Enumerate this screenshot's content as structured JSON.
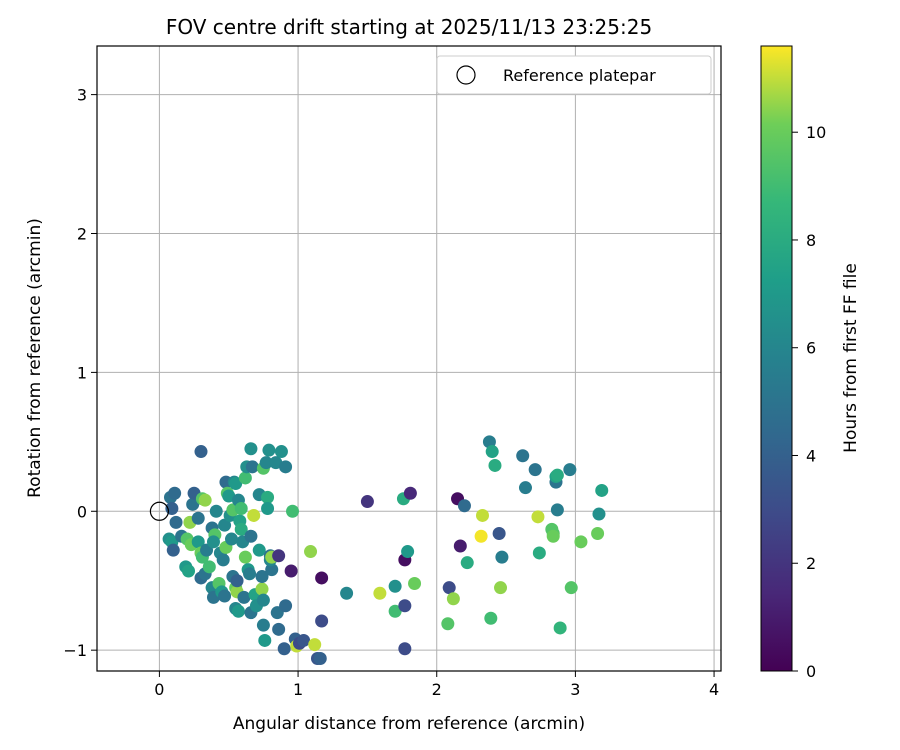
{
  "chart_data": {
    "type": "scatter",
    "title": "FOV centre drift starting at 2025/11/13 23:25:25",
    "xlabel": "Angular distance from reference (arcmin)",
    "ylabel": "Rotation from reference (arcmin)",
    "xlim": [
      -0.45,
      4.05
    ],
    "ylim": [
      -1.15,
      3.35
    ],
    "xticks": [
      "0",
      "1",
      "2",
      "3",
      "4"
    ],
    "yticks": [
      "−1",
      "0",
      "1",
      "2",
      "3"
    ],
    "grid": true,
    "legend": {
      "placement": "top-right",
      "entries": [
        "Reference platepar"
      ]
    },
    "reference": {
      "x": 0,
      "y": 0,
      "label": "Reference platepar"
    },
    "colormap": "viridis",
    "colorbar": {
      "label": "Hours from first FF file",
      "range": [
        0,
        11.6
      ],
      "ticks": [
        "0",
        "2",
        "4",
        "6",
        "8",
        "10"
      ]
    },
    "points": [
      {
        "x": 0.08,
        "y": 0.1,
        "c": 5
      },
      {
        "x": 0.11,
        "y": 0.13,
        "c": 4.5
      },
      {
        "x": 0.09,
        "y": 0.02,
        "c": 4
      },
      {
        "x": 0.12,
        "y": -0.08,
        "c": 4.5
      },
      {
        "x": 0.07,
        "y": -0.2,
        "c": 6.5
      },
      {
        "x": 0.09,
        "y": -0.22,
        "c": 7
      },
      {
        "x": 0.1,
        "y": -0.28,
        "c": 4
      },
      {
        "x": 0.16,
        "y": -0.18,
        "c": 5
      },
      {
        "x": 0.2,
        "y": -0.2,
        "c": 9.5
      },
      {
        "x": 0.19,
        "y": -0.4,
        "c": 7
      },
      {
        "x": 0.21,
        "y": -0.43,
        "c": 7.5
      },
      {
        "x": 0.23,
        "y": -0.24,
        "c": 10
      },
      {
        "x": 0.24,
        "y": 0.05,
        "c": 5
      },
      {
        "x": 0.25,
        "y": 0.13,
        "c": 4
      },
      {
        "x": 0.22,
        "y": -0.08,
        "c": 10.5
      },
      {
        "x": 0.28,
        "y": -0.05,
        "c": 5
      },
      {
        "x": 0.3,
        "y": 0.43,
        "c": 4
      },
      {
        "x": 0.31,
        "y": 0.09,
        "c": 9.5
      },
      {
        "x": 0.33,
        "y": 0.08,
        "c": 10.5
      },
      {
        "x": 0.28,
        "y": -0.22,
        "c": 7
      },
      {
        "x": 0.3,
        "y": -0.3,
        "c": 10
      },
      {
        "x": 0.31,
        "y": -0.33,
        "c": 9
      },
      {
        "x": 0.34,
        "y": -0.28,
        "c": 5.5
      },
      {
        "x": 0.3,
        "y": -0.48,
        "c": 4.5
      },
      {
        "x": 0.33,
        "y": -0.45,
        "c": 5
      },
      {
        "x": 0.36,
        "y": -0.4,
        "c": 9
      },
      {
        "x": 0.38,
        "y": -0.55,
        "c": 6
      },
      {
        "x": 0.39,
        "y": -0.62,
        "c": 5
      },
      {
        "x": 0.38,
        "y": -0.12,
        "c": 5
      },
      {
        "x": 0.4,
        "y": -0.17,
        "c": 9.5
      },
      {
        "x": 0.39,
        "y": -0.22,
        "c": 6.5
      },
      {
        "x": 0.41,
        "y": 0.0,
        "c": 6
      },
      {
        "x": 0.44,
        "y": -0.3,
        "c": 6
      },
      {
        "x": 0.43,
        "y": -0.52,
        "c": 9.5
      },
      {
        "x": 0.45,
        "y": -0.58,
        "c": 7
      },
      {
        "x": 0.47,
        "y": -0.61,
        "c": 5
      },
      {
        "x": 0.46,
        "y": -0.35,
        "c": 5.5
      },
      {
        "x": 0.48,
        "y": -0.26,
        "c": 10
      },
      {
        "x": 0.47,
        "y": -0.1,
        "c": 6
      },
      {
        "x": 0.48,
        "y": 0.21,
        "c": 4.5
      },
      {
        "x": 0.49,
        "y": 0.13,
        "c": 9.5
      },
      {
        "x": 0.5,
        "y": 0.11,
        "c": 7
      },
      {
        "x": 0.51,
        "y": -0.03,
        "c": 6.5
      },
      {
        "x": 0.53,
        "y": 0.01,
        "c": 9.5
      },
      {
        "x": 0.54,
        "y": 0.21,
        "c": 6
      },
      {
        "x": 0.55,
        "y": 0.2,
        "c": 7
      },
      {
        "x": 0.52,
        "y": -0.2,
        "c": 6
      },
      {
        "x": 0.53,
        "y": -0.47,
        "c": 5
      },
      {
        "x": 0.55,
        "y": -0.55,
        "c": 10
      },
      {
        "x": 0.56,
        "y": -0.58,
        "c": 10.5
      },
      {
        "x": 0.55,
        "y": -0.7,
        "c": 6
      },
      {
        "x": 0.57,
        "y": -0.72,
        "c": 7
      },
      {
        "x": 0.56,
        "y": -0.5,
        "c": 4
      },
      {
        "x": 0.58,
        "y": -0.07,
        "c": 7.5
      },
      {
        "x": 0.59,
        "y": -0.13,
        "c": 8
      },
      {
        "x": 0.57,
        "y": 0.08,
        "c": 6
      },
      {
        "x": 0.59,
        "y": 0.02,
        "c": 9
      },
      {
        "x": 0.6,
        "y": -0.22,
        "c": 6
      },
      {
        "x": 0.62,
        "y": -0.33,
        "c": 10
      },
      {
        "x": 0.61,
        "y": -0.62,
        "c": 5
      },
      {
        "x": 0.62,
        "y": 0.24,
        "c": 9
      },
      {
        "x": 0.63,
        "y": 0.32,
        "c": 6.5
      },
      {
        "x": 0.64,
        "y": -0.42,
        "c": 7
      },
      {
        "x": 0.65,
        "y": -0.45,
        "c": 5.5
      },
      {
        "x": 0.66,
        "y": -0.73,
        "c": 5
      },
      {
        "x": 0.66,
        "y": -0.18,
        "c": 5
      },
      {
        "x": 0.66,
        "y": 0.45,
        "c": 6.5
      },
      {
        "x": 0.67,
        "y": 0.32,
        "c": 5
      },
      {
        "x": 0.68,
        "y": -0.03,
        "c": 11
      },
      {
        "x": 0.69,
        "y": -0.6,
        "c": 7.5
      },
      {
        "x": 0.7,
        "y": -0.68,
        "c": 6.5
      },
      {
        "x": 0.72,
        "y": 0.12,
        "c": 6
      },
      {
        "x": 0.72,
        "y": -0.28,
        "c": 7
      },
      {
        "x": 0.74,
        "y": -0.56,
        "c": 10.5
      },
      {
        "x": 0.74,
        "y": -0.47,
        "c": 5
      },
      {
        "x": 0.75,
        "y": -0.64,
        "c": 6
      },
      {
        "x": 0.75,
        "y": -0.82,
        "c": 5.5
      },
      {
        "x": 0.76,
        "y": -0.93,
        "c": 7
      },
      {
        "x": 0.75,
        "y": 0.31,
        "c": 9.5
      },
      {
        "x": 0.77,
        "y": 0.35,
        "c": 6
      },
      {
        "x": 0.78,
        "y": 0.1,
        "c": 8
      },
      {
        "x": 0.78,
        "y": 0.02,
        "c": 7
      },
      {
        "x": 0.79,
        "y": 0.44,
        "c": 6.5
      },
      {
        "x": 0.8,
        "y": -0.32,
        "c": 5
      },
      {
        "x": 0.81,
        "y": -0.42,
        "c": 5
      },
      {
        "x": 0.8,
        "y": -0.35,
        "c": 6
      },
      {
        "x": 0.81,
        "y": -0.33,
        "c": 10.5
      },
      {
        "x": 0.84,
        "y": 0.35,
        "c": 6
      },
      {
        "x": 0.85,
        "y": -0.73,
        "c": 5
      },
      {
        "x": 0.86,
        "y": -0.85,
        "c": 4.5
      },
      {
        "x": 0.86,
        "y": -0.32,
        "c": 2
      },
      {
        "x": 0.88,
        "y": 0.43,
        "c": 6.5
      },
      {
        "x": 0.9,
        "y": -0.99,
        "c": 4
      },
      {
        "x": 0.91,
        "y": -0.68,
        "c": 4.5
      },
      {
        "x": 0.91,
        "y": 0.32,
        "c": 5.5
      },
      {
        "x": 0.95,
        "y": -0.43,
        "c": 1
      },
      {
        "x": 0.96,
        "y": 0.0,
        "c": 9
      },
      {
        "x": 0.98,
        "y": -0.92,
        "c": 4
      },
      {
        "x": 0.99,
        "y": -0.97,
        "c": 11
      },
      {
        "x": 1.01,
        "y": -0.95,
        "c": 3
      },
      {
        "x": 1.04,
        "y": -0.93,
        "c": 3.5
      },
      {
        "x": 1.09,
        "y": -0.29,
        "c": 10.5
      },
      {
        "x": 1.12,
        "y": -0.96,
        "c": 11
      },
      {
        "x": 1.14,
        "y": -1.06,
        "c": 3.5
      },
      {
        "x": 1.16,
        "y": -1.06,
        "c": 4
      },
      {
        "x": 1.17,
        "y": -0.48,
        "c": 0.5
      },
      {
        "x": 1.17,
        "y": -0.79,
        "c": 3
      },
      {
        "x": 1.35,
        "y": -0.59,
        "c": 6
      },
      {
        "x": 1.5,
        "y": 0.07,
        "c": 2
      },
      {
        "x": 1.59,
        "y": -0.59,
        "c": 11
      },
      {
        "x": 1.7,
        "y": -0.54,
        "c": 6.5
      },
      {
        "x": 1.7,
        "y": -0.72,
        "c": 9
      },
      {
        "x": 1.76,
        "y": 0.09,
        "c": 8
      },
      {
        "x": 1.77,
        "y": -0.35,
        "c": 0.5
      },
      {
        "x": 1.77,
        "y": -0.68,
        "c": 3
      },
      {
        "x": 1.77,
        "y": -0.99,
        "c": 3
      },
      {
        "x": 1.79,
        "y": -0.29,
        "c": 7
      },
      {
        "x": 1.81,
        "y": 0.13,
        "c": 1.5
      },
      {
        "x": 1.84,
        "y": -0.52,
        "c": 10
      },
      {
        "x": 2.08,
        "y": -0.81,
        "c": 9.5
      },
      {
        "x": 2.09,
        "y": -0.55,
        "c": 3
      },
      {
        "x": 2.12,
        "y": -0.63,
        "c": 10.5
      },
      {
        "x": 2.15,
        "y": 0.09,
        "c": 0.5
      },
      {
        "x": 2.17,
        "y": -0.25,
        "c": 1
      },
      {
        "x": 2.2,
        "y": 0.04,
        "c": 4.5
      },
      {
        "x": 2.22,
        "y": -0.37,
        "c": 8
      },
      {
        "x": 2.32,
        "y": -0.18,
        "c": 11.5
      },
      {
        "x": 2.33,
        "y": -0.03,
        "c": 11
      },
      {
        "x": 2.38,
        "y": 0.5,
        "c": 5.5
      },
      {
        "x": 2.39,
        "y": -0.77,
        "c": 9
      },
      {
        "x": 2.4,
        "y": 0.43,
        "c": 7.5
      },
      {
        "x": 2.42,
        "y": 0.33,
        "c": 8
      },
      {
        "x": 2.45,
        "y": -0.16,
        "c": 3.5
      },
      {
        "x": 2.46,
        "y": -0.55,
        "c": 10.5
      },
      {
        "x": 2.47,
        "y": -0.33,
        "c": 5.5
      },
      {
        "x": 2.62,
        "y": 0.4,
        "c": 5
      },
      {
        "x": 2.64,
        "y": 0.17,
        "c": 5.5
      },
      {
        "x": 2.71,
        "y": 0.3,
        "c": 5
      },
      {
        "x": 2.73,
        "y": -0.04,
        "c": 11
      },
      {
        "x": 2.74,
        "y": -0.3,
        "c": 8
      },
      {
        "x": 2.83,
        "y": -0.13,
        "c": 9.5
      },
      {
        "x": 2.84,
        "y": -0.16,
        "c": 9.5
      },
      {
        "x": 2.84,
        "y": -0.18,
        "c": 10
      },
      {
        "x": 2.86,
        "y": 0.21,
        "c": 5
      },
      {
        "x": 2.86,
        "y": 0.25,
        "c": 7.5
      },
      {
        "x": 2.87,
        "y": 0.26,
        "c": 8
      },
      {
        "x": 2.87,
        "y": 0.01,
        "c": 5.5
      },
      {
        "x": 2.89,
        "y": -0.84,
        "c": 8.5
      },
      {
        "x": 2.96,
        "y": 0.3,
        "c": 5.5
      },
      {
        "x": 2.97,
        "y": -0.55,
        "c": 9.5
      },
      {
        "x": 3.04,
        "y": -0.22,
        "c": 10
      },
      {
        "x": 3.16,
        "y": -0.16,
        "c": 10
      },
      {
        "x": 3.17,
        "y": -0.02,
        "c": 6.5
      },
      {
        "x": 3.19,
        "y": 0.15,
        "c": 7.5
      }
    ]
  }
}
